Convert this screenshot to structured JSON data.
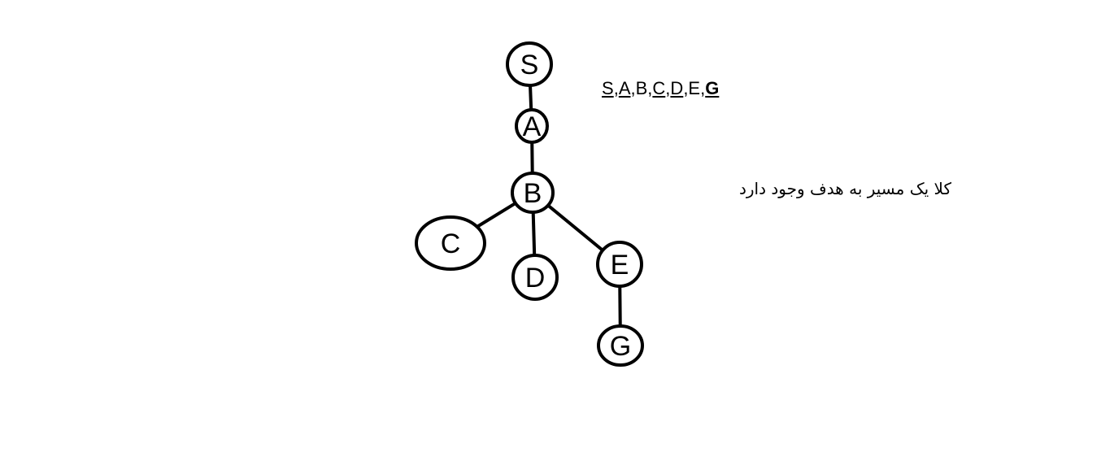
{
  "diagram": {
    "nodes": [
      {
        "id": "S",
        "label": "S"
      },
      {
        "id": "A",
        "label": "A"
      },
      {
        "id": "B",
        "label": "B"
      },
      {
        "id": "C",
        "label": "C"
      },
      {
        "id": "D",
        "label": "D"
      },
      {
        "id": "E",
        "label": "E"
      },
      {
        "id": "G",
        "label": "G"
      }
    ],
    "edges": [
      {
        "from": "S",
        "to": "A"
      },
      {
        "from": "A",
        "to": "B"
      },
      {
        "from": "B",
        "to": "C"
      },
      {
        "from": "B",
        "to": "D"
      },
      {
        "from": "B",
        "to": "E"
      },
      {
        "from": "E",
        "to": "G"
      }
    ]
  },
  "sequence": {
    "items": [
      {
        "text": "S",
        "style": "underline"
      },
      {
        "text": ",",
        "style": "plain"
      },
      {
        "text": "A",
        "style": "underline"
      },
      {
        "text": ",B,",
        "style": "plain"
      },
      {
        "text": "C",
        "style": "underline"
      },
      {
        "text": ",",
        "style": "plain"
      },
      {
        "text": "D",
        "style": "underline"
      },
      {
        "text": ",E,",
        "style": "plain"
      },
      {
        "text": "G",
        "style": "bold-underline"
      }
    ]
  },
  "note": {
    "text": "کلا یک مسیر به هدف وجود دارد"
  }
}
